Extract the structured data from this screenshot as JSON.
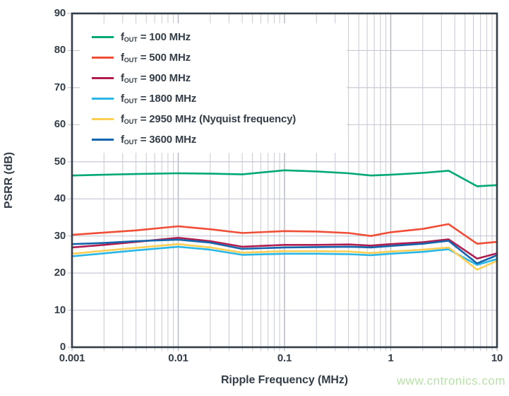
{
  "watermark": {
    "text": "www.cntronics.com",
    "color": "#b9e0a9"
  },
  "colors": {
    "frame": "#333E48",
    "text": "#333E48",
    "grid_minor": "#c7cad4",
    "grid_major": "#b2b6c2",
    "background": "#ffffff"
  },
  "chart_data": {
    "type": "line",
    "title": "",
    "xlabel": "Ripple Frequency (MHz)",
    "ylabel": "PSRR (dB)",
    "x_scale": "log",
    "xlim": [
      0.001,
      10
    ],
    "ylim": [
      0,
      90
    ],
    "grid": true,
    "legend_position": "top-left-inside",
    "yticks": [
      0,
      10,
      20,
      30,
      40,
      50,
      60,
      70,
      80,
      90
    ],
    "xticks": {
      "values": [
        0.001,
        0.01,
        0.1,
        1,
        10
      ],
      "labels": [
        "0.001",
        "0.01",
        "0.1",
        "1",
        "10"
      ]
    },
    "x": [
      0.001,
      0.002,
      0.004,
      0.01,
      0.02,
      0.04,
      0.1,
      0.2,
      0.4,
      0.65,
      1,
      2,
      3.5,
      6.5,
      10
    ],
    "series": [
      {
        "name": "fOUT = 100 MHz",
        "f_out_mhz": 100,
        "color": "#00A876",
        "legend": {
          "base": "f",
          "sub": "OUT",
          "rest": " = 100 MHz"
        },
        "values": [
          46.3,
          46.5,
          46.7,
          46.9,
          46.8,
          46.6,
          47.7,
          47.4,
          46.9,
          46.3,
          46.5,
          47.0,
          47.6,
          43.4,
          43.7
        ]
      },
      {
        "name": "fOUT = 500 MHz",
        "f_out_mhz": 500,
        "color": "#F04E37",
        "legend": {
          "base": "f",
          "sub": "OUT",
          "rest": " = 500 MHz"
        },
        "values": [
          30.3,
          30.9,
          31.5,
          32.6,
          31.8,
          30.8,
          31.3,
          31.2,
          30.8,
          30.0,
          31.0,
          31.9,
          33.2,
          27.9,
          28.4
        ]
      },
      {
        "name": "fOUT = 900 MHz",
        "f_out_mhz": 900,
        "color": "#B01E4F",
        "legend": {
          "base": "f",
          "sub": "OUT",
          "rest": " = 900 MHz"
        },
        "values": [
          26.9,
          27.6,
          28.4,
          29.5,
          28.6,
          27.1,
          27.6,
          27.6,
          27.7,
          27.4,
          27.8,
          28.3,
          29.1,
          23.9,
          25.3
        ]
      },
      {
        "name": "fOUT = 1800 MHz",
        "f_out_mhz": 1800,
        "color": "#2BB7E5",
        "legend": {
          "base": "f",
          "sub": "OUT",
          "rest": " = 1800 MHz"
        },
        "values": [
          24.5,
          25.3,
          26.1,
          27.1,
          26.3,
          24.9,
          25.2,
          25.2,
          25.1,
          24.8,
          25.2,
          25.7,
          26.4,
          22.2,
          23.8
        ]
      },
      {
        "name": "fOUT = 2950 MHz (Nyquist frequency)",
        "f_out_mhz": 2950,
        "color": "#FFCE54",
        "legend": {
          "base": "f",
          "sub": "OUT",
          "rest": " = 2950 MHz (Nyquist frequency)"
        },
        "values": [
          25.2,
          26.0,
          26.8,
          27.8,
          26.9,
          25.5,
          25.9,
          25.9,
          25.8,
          25.4,
          25.8,
          26.3,
          26.9,
          20.9,
          23.3
        ]
      },
      {
        "name": "fOUT = 3600 MHz",
        "f_out_mhz": 3600,
        "color": "#1465AC",
        "legend": {
          "base": "f",
          "sub": "OUT",
          "rest": " = 3600 MHz"
        },
        "values": [
          27.8,
          28.1,
          28.6,
          29.0,
          28.2,
          26.5,
          26.9,
          27.0,
          27.1,
          26.9,
          27.3,
          27.9,
          28.7,
          22.6,
          24.8
        ]
      }
    ]
  }
}
